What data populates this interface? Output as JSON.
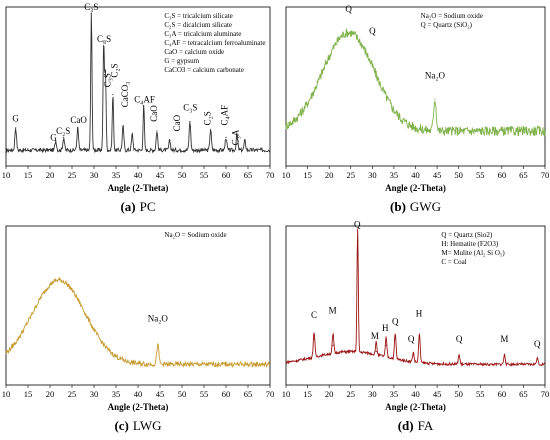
{
  "chart_data": [
    {
      "type": "line",
      "id": "pc",
      "caption_letter": "(a)",
      "caption_text": "PC",
      "xlabel": "Angle (2-Theta)",
      "xlim": [
        10,
        70
      ],
      "xticks": [
        10,
        15,
        20,
        25,
        30,
        35,
        40,
        45,
        50,
        55,
        60,
        65,
        70
      ],
      "color": "#333333",
      "baseline": 0.1,
      "noise": 0.012,
      "hump": null,
      "peaks": [
        {
          "x": 12.2,
          "h": 0.14,
          "w": 0.18
        },
        {
          "x": 21.3,
          "h": 0.06,
          "w": 0.18
        },
        {
          "x": 23.1,
          "h": 0.08,
          "w": 0.18
        },
        {
          "x": 26.3,
          "h": 0.14,
          "w": 0.18
        },
        {
          "x": 29.4,
          "h": 0.86,
          "w": 0.15
        },
        {
          "x": 32.2,
          "h": 0.68,
          "w": 0.15
        },
        {
          "x": 32.6,
          "h": 0.5,
          "w": 0.15
        },
        {
          "x": 34.3,
          "h": 0.35,
          "w": 0.15
        },
        {
          "x": 36.6,
          "h": 0.15,
          "w": 0.18
        },
        {
          "x": 38.7,
          "h": 0.1,
          "w": 0.18
        },
        {
          "x": 41.3,
          "h": 0.28,
          "w": 0.15
        },
        {
          "x": 44.3,
          "h": 0.12,
          "w": 0.18
        },
        {
          "x": 47.2,
          "h": 0.06,
          "w": 0.18
        },
        {
          "x": 51.8,
          "h": 0.18,
          "w": 0.18
        },
        {
          "x": 56.5,
          "h": 0.13,
          "w": 0.18
        },
        {
          "x": 60.0,
          "h": 0.08,
          "w": 0.18
        },
        {
          "x": 62.5,
          "h": 0.1,
          "w": 0.18
        },
        {
          "x": 64.3,
          "h": 0.06,
          "w": 0.18
        }
      ],
      "annotations": [
        {
          "text": "G",
          "x": 12.2,
          "y": 0.28
        },
        {
          "text": "G",
          "x": 20.8,
          "y": 0.16
        },
        {
          "text": "C₂S",
          "x": 23.0,
          "y": 0.2
        },
        {
          "text": "CaO",
          "x": 26.5,
          "y": 0.27
        },
        {
          "text": "C₃S",
          "x": 29.4,
          "y": 0.98
        },
        {
          "text": "C₃S",
          "x": 32.3,
          "y": 0.78
        },
        {
          "text": "C₃S",
          "x": 33.8,
          "y": 0.54,
          "rotate": -90
        },
        {
          "text": "C₂S",
          "x": 35.3,
          "y": 0.6,
          "rotate": -90
        },
        {
          "text": "CaCO₃",
          "x": 37.7,
          "y": 0.45,
          "rotate": -90
        },
        {
          "text": "C₄AF",
          "x": 41.5,
          "y": 0.4
        },
        {
          "text": "CaO",
          "x": 44.3,
          "y": 0.33,
          "rotate": -90
        },
        {
          "text": "CaO",
          "x": 49.5,
          "y": 0.27,
          "rotate": -90
        },
        {
          "text": "C₃S",
          "x": 51.9,
          "y": 0.35
        },
        {
          "text": "C₂S",
          "x": 56.5,
          "y": 0.3,
          "rotate": -90
        },
        {
          "text": "C₄AF",
          "x": 60.3,
          "y": 0.32,
          "rotate": -90
        },
        {
          "text": "C₃A",
          "x": 62.8,
          "y": 0.18,
          "rotate": -90
        }
      ],
      "legend": [
        "C₃S = tricalcium silicate",
        "C₂S = dicalcium silicate",
        "C₃A = tricalcium aluminate",
        "C₄AF = tetracalcium ferroaluminate",
        "CaO = calcium oxide",
        "G = gypsum",
        "CaCO3 = calcium carbonate"
      ]
    },
    {
      "type": "line",
      "id": "gwg",
      "caption_letter": "(b)",
      "caption_text": "GWG",
      "xlabel": "Angle (2-Theta)",
      "xlim": [
        10,
        70
      ],
      "xticks": [
        10,
        15,
        20,
        25,
        30,
        35,
        40,
        45,
        50,
        55,
        60,
        65,
        70
      ],
      "color": "#7fb24a",
      "baseline": 0.22,
      "noise": 0.03,
      "hump": {
        "center": 24.5,
        "height": 0.62,
        "width": 6.0
      },
      "peaks": [
        {
          "x": 44.5,
          "h": 0.2,
          "w": 0.3
        }
      ],
      "annotations": [
        {
          "text": "Q",
          "x": 24.5,
          "y": 0.97
        },
        {
          "text": "Q",
          "x": 30.0,
          "y": 0.83
        },
        {
          "text": "Na₂O",
          "x": 44.5,
          "y": 0.55
        }
      ],
      "legend": [
        "Na₂O = Sodium oxide",
        "Q = Quartz (SiO₂)"
      ]
    },
    {
      "type": "line",
      "id": "lwg",
      "caption_letter": "(c)",
      "caption_text": "LWG",
      "xlabel": "Angle (2-Theta)",
      "xlim": [
        10,
        70
      ],
      "xticks": [
        10,
        15,
        20,
        25,
        30,
        35,
        40,
        45,
        50,
        55,
        60,
        65,
        70
      ],
      "color": "#c79a2e",
      "baseline": 0.13,
      "noise": 0.015,
      "hump": {
        "center": 22.0,
        "height": 0.53,
        "width": 6.0
      },
      "peaks": [
        {
          "x": 44.5,
          "h": 0.12,
          "w": 0.25
        }
      ],
      "annotations": [
        {
          "text": "Na₂O",
          "x": 44.5,
          "y": 0.4
        }
      ],
      "legend": [
        "Na₂O = Sodium oxide"
      ]
    },
    {
      "type": "line",
      "id": "fa",
      "caption_letter": "(d)",
      "caption_text": "FA",
      "xlabel": "Angle (2-Theta)",
      "xlim": [
        10,
        70
      ],
      "xticks": [
        10,
        15,
        20,
        25,
        30,
        35,
        40,
        45,
        50,
        55,
        60,
        65,
        70
      ],
      "color": "#9a1414",
      "baseline": 0.13,
      "noise": 0.008,
      "hump": {
        "center": 25.0,
        "height": 0.08,
        "width": 8.0
      },
      "peaks": [
        {
          "x": 16.5,
          "h": 0.16,
          "w": 0.18
        },
        {
          "x": 20.9,
          "h": 0.12,
          "w": 0.18
        },
        {
          "x": 26.6,
          "h": 0.78,
          "w": 0.15
        },
        {
          "x": 30.9,
          "h": 0.08,
          "w": 0.18
        },
        {
          "x": 33.2,
          "h": 0.12,
          "w": 0.18
        },
        {
          "x": 35.3,
          "h": 0.16,
          "w": 0.18
        },
        {
          "x": 39.5,
          "h": 0.06,
          "w": 0.18
        },
        {
          "x": 40.9,
          "h": 0.18,
          "w": 0.18
        },
        {
          "x": 50.1,
          "h": 0.06,
          "w": 0.18
        },
        {
          "x": 60.6,
          "h": 0.06,
          "w": 0.18
        },
        {
          "x": 68.2,
          "h": 0.04,
          "w": 0.18
        }
      ],
      "annotations": [
        {
          "text": "Q",
          "x": 26.5,
          "y": 0.99
        },
        {
          "text": "C",
          "x": 16.5,
          "y": 0.42
        },
        {
          "text": "M",
          "x": 20.8,
          "y": 0.45
        },
        {
          "text": "M",
          "x": 30.6,
          "y": 0.29
        },
        {
          "text": "H",
          "x": 33.0,
          "y": 0.34
        },
        {
          "text": "Q",
          "x": 35.3,
          "y": 0.38
        },
        {
          "text": "H",
          "x": 40.8,
          "y": 0.43
        },
        {
          "text": "Q",
          "x": 39.0,
          "y": 0.27
        },
        {
          "text": "Q",
          "x": 50.1,
          "y": 0.27
        },
        {
          "text": "M",
          "x": 60.6,
          "y": 0.27
        },
        {
          "text": "Q",
          "x": 68.2,
          "y": 0.24
        }
      ],
      "legend": [
        "Q = Quartz (Sio2)",
        "H: Hematite (F2O3)",
        "M= Mulite (Al₂ Si O₅)",
        "C = Coal"
      ]
    }
  ]
}
